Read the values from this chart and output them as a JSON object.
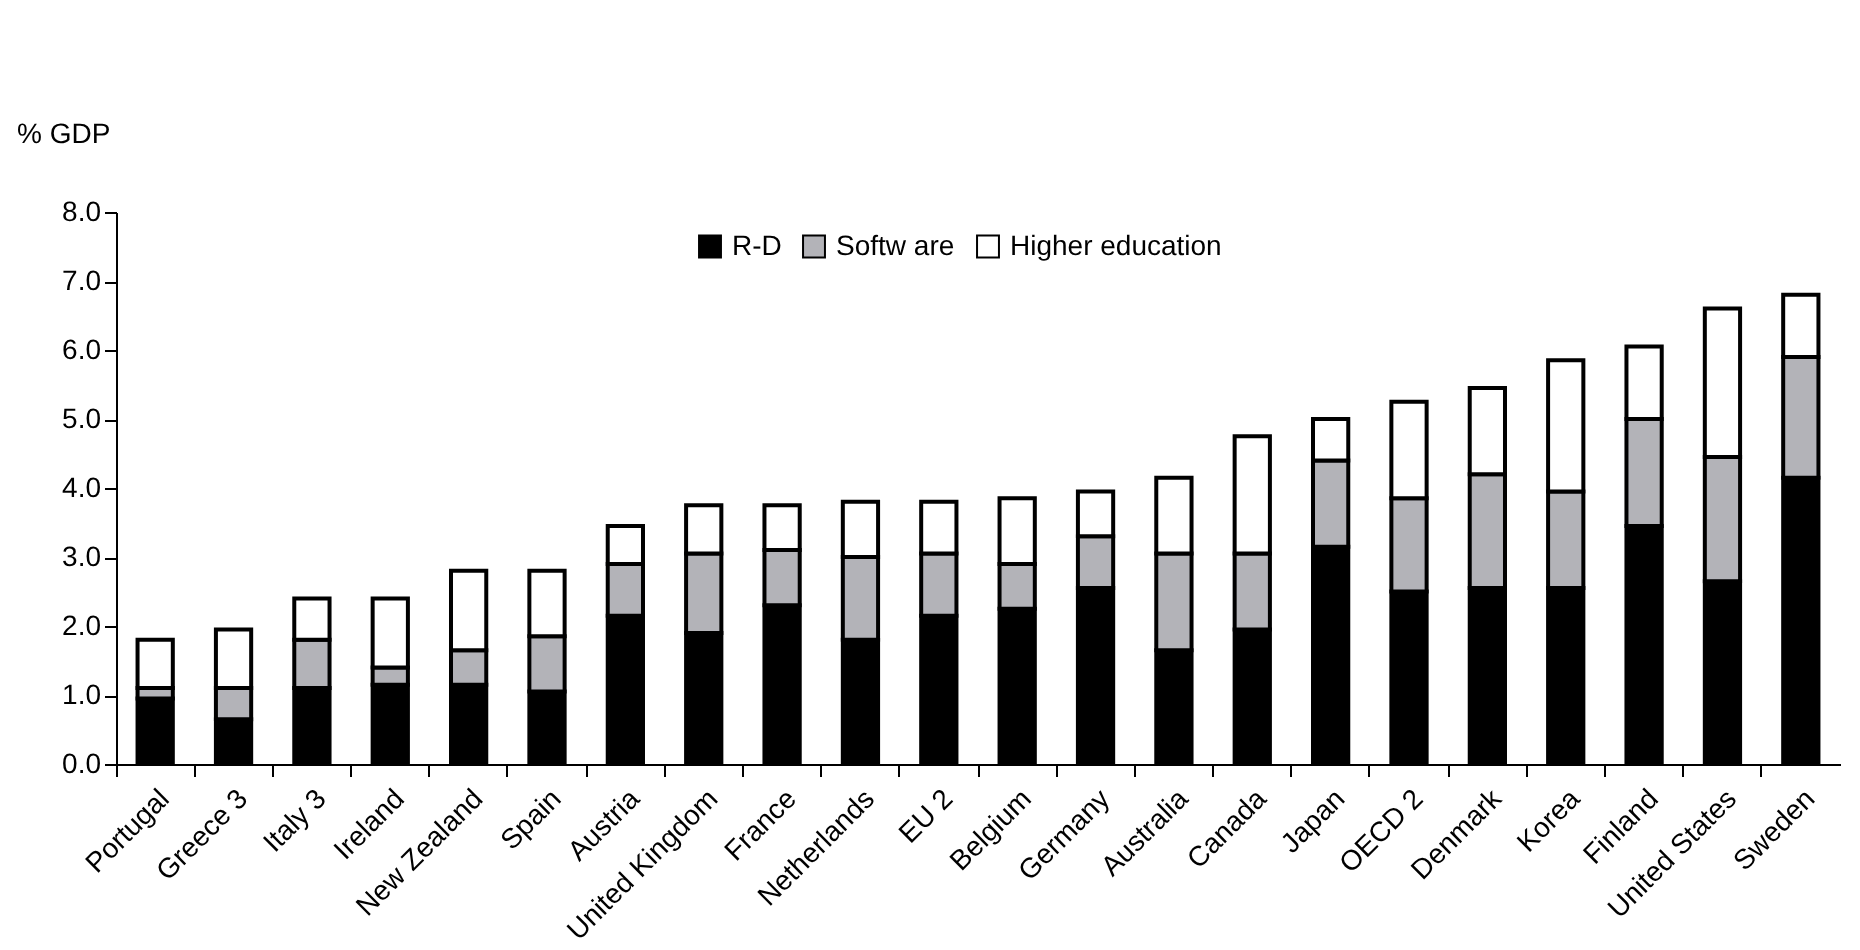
{
  "chart_data": {
    "type": "bar",
    "stacked": true,
    "ylabel": "% GDP",
    "categories": [
      "Portugal",
      "Greece 3",
      "Italy 3",
      "Ireland",
      "New Zealand",
      "Spain",
      "Austria",
      "United Kingdom",
      "France",
      "Netherlands",
      "EU 2",
      "Belgium",
      "Germany",
      "Australia",
      "Canada",
      "Japan",
      "OECD 2",
      "Denmark",
      "Korea",
      "Finland",
      "United States",
      "Sweden"
    ],
    "series": [
      {
        "name": "R-D",
        "color": "#000000",
        "values": [
          0.95,
          0.65,
          1.1,
          1.15,
          1.15,
          1.05,
          2.15,
          1.9,
          2.3,
          1.8,
          2.15,
          2.25,
          2.55,
          1.65,
          1.95,
          3.15,
          2.5,
          2.55,
          2.55,
          3.45,
          2.65,
          4.15
        ]
      },
      {
        "name": "Softw are",
        "color": "#b3b3b8",
        "values": [
          0.15,
          0.45,
          0.7,
          0.25,
          0.5,
          0.8,
          0.75,
          1.15,
          0.8,
          1.2,
          0.9,
          0.65,
          0.75,
          1.4,
          1.1,
          1.25,
          1.35,
          1.65,
          1.4,
          1.55,
          1.8,
          1.75
        ]
      },
      {
        "name": "Higher education",
        "color": "#ffffff",
        "values": [
          0.7,
          0.85,
          0.6,
          1.0,
          1.15,
          0.95,
          0.55,
          0.7,
          0.65,
          0.8,
          0.75,
          0.95,
          0.65,
          1.1,
          1.7,
          0.6,
          1.4,
          1.25,
          1.9,
          1.05,
          2.15,
          0.9
        ]
      }
    ],
    "ylim": [
      0,
      8
    ],
    "yticks": [
      {
        "value": 0,
        "label": "0.0"
      },
      {
        "value": 1,
        "label": "1.0"
      },
      {
        "value": 2,
        "label": "2.0"
      },
      {
        "value": 3,
        "label": "3.0"
      },
      {
        "value": 4,
        "label": "4.0"
      },
      {
        "value": 5,
        "label": "5.0"
      },
      {
        "value": 6,
        "label": "6.0"
      },
      {
        "value": 7,
        "label": "7.0"
      },
      {
        "value": 8,
        "label": "8.0"
      }
    ],
    "grid": false,
    "legend": "top"
  }
}
